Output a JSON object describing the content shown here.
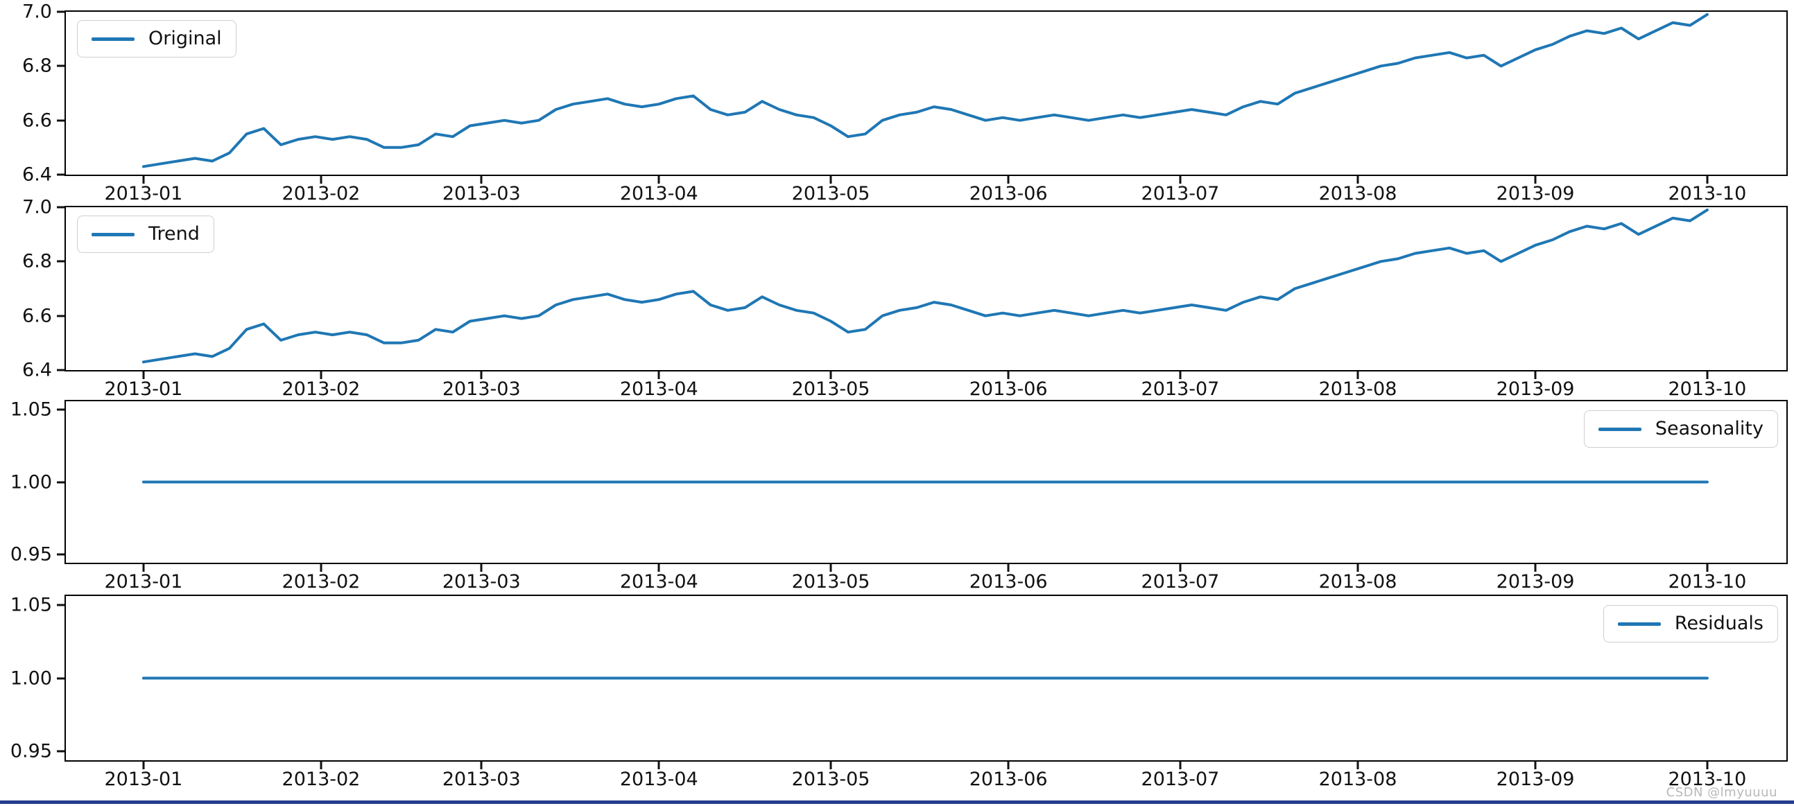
{
  "watermark": "CSDN @lmyuuuu",
  "colors": {
    "line": "#1f77b4",
    "axis": "#000000",
    "tick_text": "#111111",
    "legend_border": "#cfcfcf",
    "watermark_text": "#b8b8b8",
    "bottom_bar": "#263c8c",
    "background": "#ffffff"
  },
  "chart_data": {
    "type": "line",
    "layout": "4 vertically stacked subplots sharing the same x date range (seasonal decomposition: observed, trend, seasonal, residual)",
    "grid": false,
    "x_ticks": [
      {
        "label": "2013-01",
        "date": "2013-01-01"
      },
      {
        "label": "2013-02",
        "date": "2013-02-01"
      },
      {
        "label": "2013-03",
        "date": "2013-03-01"
      },
      {
        "label": "2013-04",
        "date": "2013-04-01"
      },
      {
        "label": "2013-05",
        "date": "2013-05-01"
      },
      {
        "label": "2013-06",
        "date": "2013-06-01"
      },
      {
        "label": "2013-07",
        "date": "2013-07-01"
      },
      {
        "label": "2013-08",
        "date": "2013-08-01"
      },
      {
        "label": "2013-09",
        "date": "2013-09-01"
      },
      {
        "label": "2013-10",
        "date": "2013-10-01"
      }
    ],
    "x_range": [
      "2013-01-01",
      "2013-10-01"
    ],
    "panels": [
      {
        "legend": "Original",
        "legend_position": "upper left",
        "ylim": [
          6.4,
          7.0
        ],
        "y_ticks": [
          {
            "label": "7.0",
            "value": 7.0
          },
          {
            "label": "6.8",
            "value": 6.8
          },
          {
            "label": "6.6",
            "value": 6.6
          },
          {
            "label": "6.4",
            "value": 6.4
          }
        ],
        "series": [
          {
            "name": "Original",
            "x": [
              "2013-01-01",
              "2013-01-04",
              "2013-01-07",
              "2013-01-10",
              "2013-01-13",
              "2013-01-16",
              "2013-01-19",
              "2013-01-22",
              "2013-01-25",
              "2013-01-28",
              "2013-01-31",
              "2013-02-03",
              "2013-02-06",
              "2013-02-09",
              "2013-02-12",
              "2013-02-15",
              "2013-02-18",
              "2013-02-21",
              "2013-02-24",
              "2013-02-27",
              "2013-03-02",
              "2013-03-05",
              "2013-03-08",
              "2013-03-11",
              "2013-03-14",
              "2013-03-17",
              "2013-03-20",
              "2013-03-23",
              "2013-03-26",
              "2013-03-29",
              "2013-04-01",
              "2013-04-04",
              "2013-04-07",
              "2013-04-10",
              "2013-04-13",
              "2013-04-16",
              "2013-04-19",
              "2013-04-22",
              "2013-04-25",
              "2013-04-28",
              "2013-05-01",
              "2013-05-04",
              "2013-05-07",
              "2013-05-10",
              "2013-05-13",
              "2013-05-16",
              "2013-05-19",
              "2013-05-22",
              "2013-05-25",
              "2013-05-28",
              "2013-05-31",
              "2013-06-03",
              "2013-06-06",
              "2013-06-09",
              "2013-06-12",
              "2013-06-15",
              "2013-06-18",
              "2013-06-21",
              "2013-06-24",
              "2013-06-27",
              "2013-06-30",
              "2013-07-03",
              "2013-07-06",
              "2013-07-09",
              "2013-07-12",
              "2013-07-15",
              "2013-07-18",
              "2013-07-21",
              "2013-07-24",
              "2013-07-27",
              "2013-07-30",
              "2013-08-02",
              "2013-08-05",
              "2013-08-08",
              "2013-08-11",
              "2013-08-14",
              "2013-08-17",
              "2013-08-20",
              "2013-08-23",
              "2013-08-26",
              "2013-08-29",
              "2013-09-01",
              "2013-09-04",
              "2013-09-07",
              "2013-09-10",
              "2013-09-13",
              "2013-09-16",
              "2013-09-19",
              "2013-09-22",
              "2013-09-25",
              "2013-09-28",
              "2013-10-01"
            ],
            "y": [
              6.43,
              6.44,
              6.45,
              6.46,
              6.45,
              6.48,
              6.55,
              6.57,
              6.51,
              6.53,
              6.54,
              6.53,
              6.54,
              6.53,
              6.5,
              6.5,
              6.51,
              6.55,
              6.54,
              6.58,
              6.59,
              6.6,
              6.59,
              6.6,
              6.64,
              6.66,
              6.67,
              6.68,
              6.66,
              6.65,
              6.66,
              6.68,
              6.69,
              6.64,
              6.62,
              6.63,
              6.67,
              6.64,
              6.62,
              6.61,
              6.58,
              6.54,
              6.55,
              6.6,
              6.62,
              6.63,
              6.65,
              6.64,
              6.62,
              6.6,
              6.61,
              6.6,
              6.61,
              6.62,
              6.61,
              6.6,
              6.61,
              6.62,
              6.61,
              6.62,
              6.63,
              6.64,
              6.63,
              6.62,
              6.65,
              6.67,
              6.66,
              6.7,
              6.72,
              6.74,
              6.76,
              6.78,
              6.8,
              6.81,
              6.83,
              6.84,
              6.85,
              6.83,
              6.84,
              6.8,
              6.83,
              6.86,
              6.88,
              6.91,
              6.93,
              6.92,
              6.94,
              6.9,
              6.93,
              6.96,
              6.95,
              6.99
            ]
          }
        ]
      },
      {
        "legend": "Trend",
        "legend_position": "upper left",
        "ylim": [
          6.4,
          7.0
        ],
        "y_ticks": [
          {
            "label": "7.0",
            "value": 7.0
          },
          {
            "label": "6.8",
            "value": 6.8
          },
          {
            "label": "6.6",
            "value": 6.6
          },
          {
            "label": "6.4",
            "value": 6.4
          }
        ],
        "series": [
          {
            "name": "Trend",
            "x": [
              "2013-01-01",
              "2013-01-04",
              "2013-01-07",
              "2013-01-10",
              "2013-01-13",
              "2013-01-16",
              "2013-01-19",
              "2013-01-22",
              "2013-01-25",
              "2013-01-28",
              "2013-01-31",
              "2013-02-03",
              "2013-02-06",
              "2013-02-09",
              "2013-02-12",
              "2013-02-15",
              "2013-02-18",
              "2013-02-21",
              "2013-02-24",
              "2013-02-27",
              "2013-03-02",
              "2013-03-05",
              "2013-03-08",
              "2013-03-11",
              "2013-03-14",
              "2013-03-17",
              "2013-03-20",
              "2013-03-23",
              "2013-03-26",
              "2013-03-29",
              "2013-04-01",
              "2013-04-04",
              "2013-04-07",
              "2013-04-10",
              "2013-04-13",
              "2013-04-16",
              "2013-04-19",
              "2013-04-22",
              "2013-04-25",
              "2013-04-28",
              "2013-05-01",
              "2013-05-04",
              "2013-05-07",
              "2013-05-10",
              "2013-05-13",
              "2013-05-16",
              "2013-05-19",
              "2013-05-22",
              "2013-05-25",
              "2013-05-28",
              "2013-05-31",
              "2013-06-03",
              "2013-06-06",
              "2013-06-09",
              "2013-06-12",
              "2013-06-15",
              "2013-06-18",
              "2013-06-21",
              "2013-06-24",
              "2013-06-27",
              "2013-06-30",
              "2013-07-03",
              "2013-07-06",
              "2013-07-09",
              "2013-07-12",
              "2013-07-15",
              "2013-07-18",
              "2013-07-21",
              "2013-07-24",
              "2013-07-27",
              "2013-07-30",
              "2013-08-02",
              "2013-08-05",
              "2013-08-08",
              "2013-08-11",
              "2013-08-14",
              "2013-08-17",
              "2013-08-20",
              "2013-08-23",
              "2013-08-26",
              "2013-08-29",
              "2013-09-01",
              "2013-09-04",
              "2013-09-07",
              "2013-09-10",
              "2013-09-13",
              "2013-09-16",
              "2013-09-19",
              "2013-09-22",
              "2013-09-25",
              "2013-09-28",
              "2013-10-01"
            ],
            "y": [
              6.43,
              6.44,
              6.45,
              6.46,
              6.45,
              6.48,
              6.55,
              6.57,
              6.51,
              6.53,
              6.54,
              6.53,
              6.54,
              6.53,
              6.5,
              6.5,
              6.51,
              6.55,
              6.54,
              6.58,
              6.59,
              6.6,
              6.59,
              6.6,
              6.64,
              6.66,
              6.67,
              6.68,
              6.66,
              6.65,
              6.66,
              6.68,
              6.69,
              6.64,
              6.62,
              6.63,
              6.67,
              6.64,
              6.62,
              6.61,
              6.58,
              6.54,
              6.55,
              6.6,
              6.62,
              6.63,
              6.65,
              6.64,
              6.62,
              6.6,
              6.61,
              6.6,
              6.61,
              6.62,
              6.61,
              6.6,
              6.61,
              6.62,
              6.61,
              6.62,
              6.63,
              6.64,
              6.63,
              6.62,
              6.65,
              6.67,
              6.66,
              6.7,
              6.72,
              6.74,
              6.76,
              6.78,
              6.8,
              6.81,
              6.83,
              6.84,
              6.85,
              6.83,
              6.84,
              6.8,
              6.83,
              6.86,
              6.88,
              6.91,
              6.93,
              6.92,
              6.94,
              6.9,
              6.93,
              6.96,
              6.95,
              6.99
            ]
          }
        ]
      },
      {
        "legend": "Seasonality",
        "legend_position": "upper right",
        "ylim": [
          0.944,
          1.056
        ],
        "y_ticks": [
          {
            "label": "1.05",
            "value": 1.05
          },
          {
            "label": "1.00",
            "value": 1.0
          },
          {
            "label": "0.95",
            "value": 0.95
          }
        ],
        "series": [
          {
            "name": "Seasonality",
            "x": [
              "2013-01-01",
              "2013-02-01",
              "2013-03-01",
              "2013-04-01",
              "2013-05-01",
              "2013-06-01",
              "2013-07-01",
              "2013-08-01",
              "2013-09-01",
              "2013-10-01"
            ],
            "y": [
              1.0,
              1.0,
              1.0,
              1.0,
              1.0,
              1.0,
              1.0,
              1.0,
              1.0,
              1.0
            ]
          }
        ]
      },
      {
        "legend": "Residuals",
        "legend_position": "upper right",
        "ylim": [
          0.944,
          1.056
        ],
        "y_ticks": [
          {
            "label": "1.05",
            "value": 1.05
          },
          {
            "label": "1.00",
            "value": 1.0
          },
          {
            "label": "0.95",
            "value": 0.95
          }
        ],
        "series": [
          {
            "name": "Residuals",
            "x": [
              "2013-01-01",
              "2013-02-01",
              "2013-03-01",
              "2013-04-01",
              "2013-05-01",
              "2013-06-01",
              "2013-07-01",
              "2013-08-01",
              "2013-09-01",
              "2013-10-01"
            ],
            "y": [
              1.0,
              1.0,
              1.0,
              1.0,
              1.0,
              1.0,
              1.0,
              1.0,
              1.0,
              1.0
            ]
          }
        ]
      }
    ]
  }
}
